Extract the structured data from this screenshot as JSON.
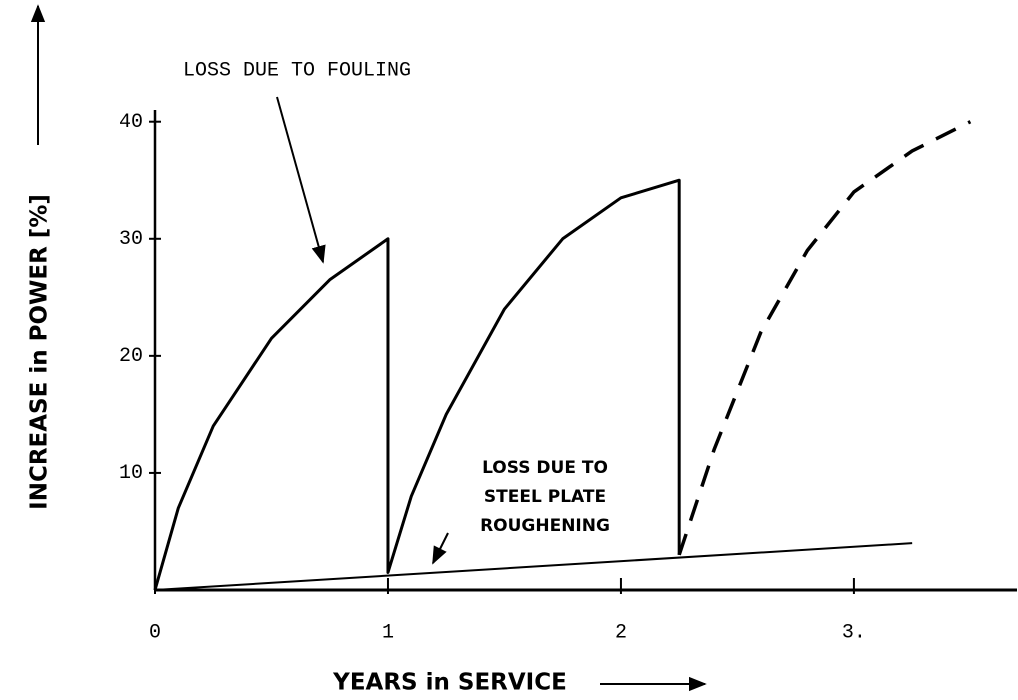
{
  "chart_data": {
    "type": "line",
    "xlabel": "YEARS in SERVICE",
    "ylabel": "INCREASE in POWER [%]",
    "xlim": [
      0,
      3.7
    ],
    "ylim": [
      0,
      41
    ],
    "xticks": [
      0,
      1,
      2,
      {
        "value": 3,
        "label": "3."
      }
    ],
    "yticks": [
      10,
      20,
      30,
      40
    ],
    "series": [
      {
        "color": "#000000",
        "style": "solid",
        "x": [
          0,
          0.1,
          0.25,
          0.5,
          0.75,
          1,
          1,
          1.1,
          1.25,
          1.5,
          1.75,
          2,
          2.25,
          2.25
        ],
        "values": [
          0,
          7,
          14,
          21.5,
          26.5,
          30,
          1.5,
          8,
          15,
          24,
          30,
          33.5,
          35,
          3
        ]
      },
      {
        "color": "#000000",
        "style": "dashed",
        "x": [
          2.25,
          2.4,
          2.6,
          2.8,
          3,
          3.25,
          3.5
        ],
        "values": [
          3,
          12,
          22,
          29,
          34,
          37.5,
          40
        ]
      },
      {
        "color": "#000000",
        "style": "thin",
        "x": [
          0,
          3.25
        ],
        "values": [
          0,
          4
        ]
      }
    ],
    "annotations": [
      {
        "lines": [
          "LOSS DUE TO FOULING"
        ]
      },
      {
        "lines": [
          "LOSS DUE TO",
          "STEEL PLATE",
          "ROUGHENING"
        ]
      }
    ]
  }
}
